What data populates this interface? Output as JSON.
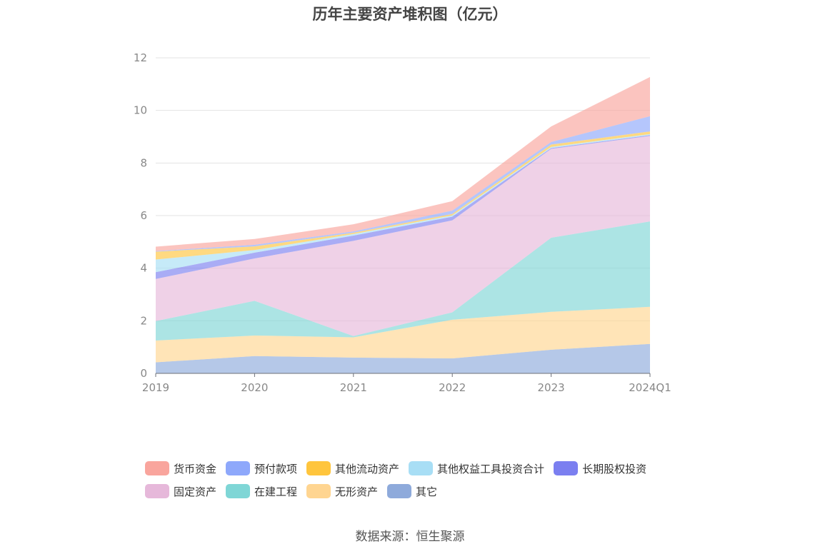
{
  "title": "历年主要资产堆积图（亿元）",
  "source_note": "数据来源：恒生聚源",
  "chart_data": {
    "type": "area",
    "stacked": true,
    "title": "历年主要资产堆积图（亿元）",
    "categories": [
      "2019",
      "2020",
      "2021",
      "2022",
      "2023",
      "2024Q1"
    ],
    "ylim": [
      0,
      12
    ],
    "yticks": [
      "0",
      "2",
      "4",
      "6",
      "8",
      "10",
      "12"
    ],
    "grid": true,
    "legend_position": "bottom",
    "series": [
      {
        "name": "其它",
        "color": "#8eaadb",
        "values": [
          0.42,
          0.66,
          0.6,
          0.57,
          0.9,
          1.12
        ]
      },
      {
        "name": "无形资产",
        "color": "#ffd591",
        "values": [
          0.83,
          0.78,
          0.77,
          1.47,
          1.44,
          1.41
        ]
      },
      {
        "name": "在建工程",
        "color": "#7fd6d6",
        "values": [
          0.74,
          1.32,
          0.05,
          0.28,
          2.82,
          3.25
        ]
      },
      {
        "name": "固定资产",
        "color": "#e6b8da",
        "values": [
          1.6,
          1.61,
          3.62,
          3.5,
          3.38,
          3.25
        ]
      },
      {
        "name": "长期股权投资",
        "color": "#7b7ff0",
        "values": [
          0.26,
          0.22,
          0.2,
          0.14,
          0.03,
          0.03
        ]
      },
      {
        "name": "其他权益工具投资合计",
        "color": "#a8def5",
        "values": [
          0.48,
          0.1,
          0.06,
          0.05,
          0.04,
          0.04
        ]
      },
      {
        "name": "其他流动资产",
        "color": "#ffc53d",
        "values": [
          0.3,
          0.14,
          0.05,
          0.05,
          0.09,
          0.1
        ]
      },
      {
        "name": "预付款项",
        "color": "#8ea8fb",
        "values": [
          0.02,
          0.06,
          0.05,
          0.13,
          0.1,
          0.58
        ]
      },
      {
        "name": "货币资金",
        "color": "#f9a59d",
        "values": [
          0.17,
          0.22,
          0.27,
          0.36,
          0.59,
          1.49
        ]
      }
    ],
    "legend_rows": [
      [
        "货币资金",
        "预付款项",
        "其他流动资产",
        "其他权益工具投资合计",
        "长期股权投资"
      ],
      [
        "固定资产",
        "在建工程",
        "无形资产",
        "其它"
      ]
    ]
  }
}
